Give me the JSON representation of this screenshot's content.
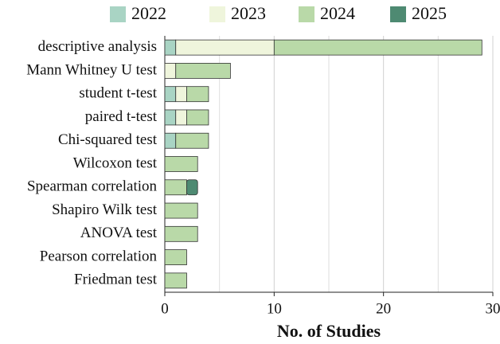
{
  "chart_data": {
    "type": "stacked_barh",
    "xlabel": "No. of Studies",
    "categories": [
      "descriptive analysis",
      "Mann Whitney U test",
      "student t-test",
      "paired t-test",
      "Chi-squared test",
      "Wilcoxon test",
      "Spearman correlation",
      "Shapiro Wilk test",
      "ANOVA test",
      "Pearson correlation",
      "Friedman test"
    ],
    "series": [
      {
        "name": "2022",
        "color": "#a9d4c4",
        "values": [
          1,
          0,
          1,
          1,
          1,
          0,
          0,
          0,
          0,
          0,
          0
        ]
      },
      {
        "name": "2023",
        "color": "#eff5dc",
        "values": [
          9,
          1,
          1,
          1,
          0,
          0,
          0,
          0,
          0,
          0,
          0
        ]
      },
      {
        "name": "2024",
        "color": "#b9d9a8",
        "values": [
          19,
          5,
          2,
          2,
          3,
          3,
          2,
          3,
          3,
          2,
          2
        ]
      },
      {
        "name": "2025",
        "color": "#4e8a72",
        "values": [
          0,
          0,
          0,
          0,
          0,
          0,
          1,
          0,
          0,
          0,
          0
        ]
      }
    ],
    "xlim": [
      0,
      30
    ],
    "xticks": [
      0,
      10,
      20,
      30
    ],
    "xminor": [
      5,
      15,
      25
    ],
    "grid": true,
    "legend": "top"
  }
}
